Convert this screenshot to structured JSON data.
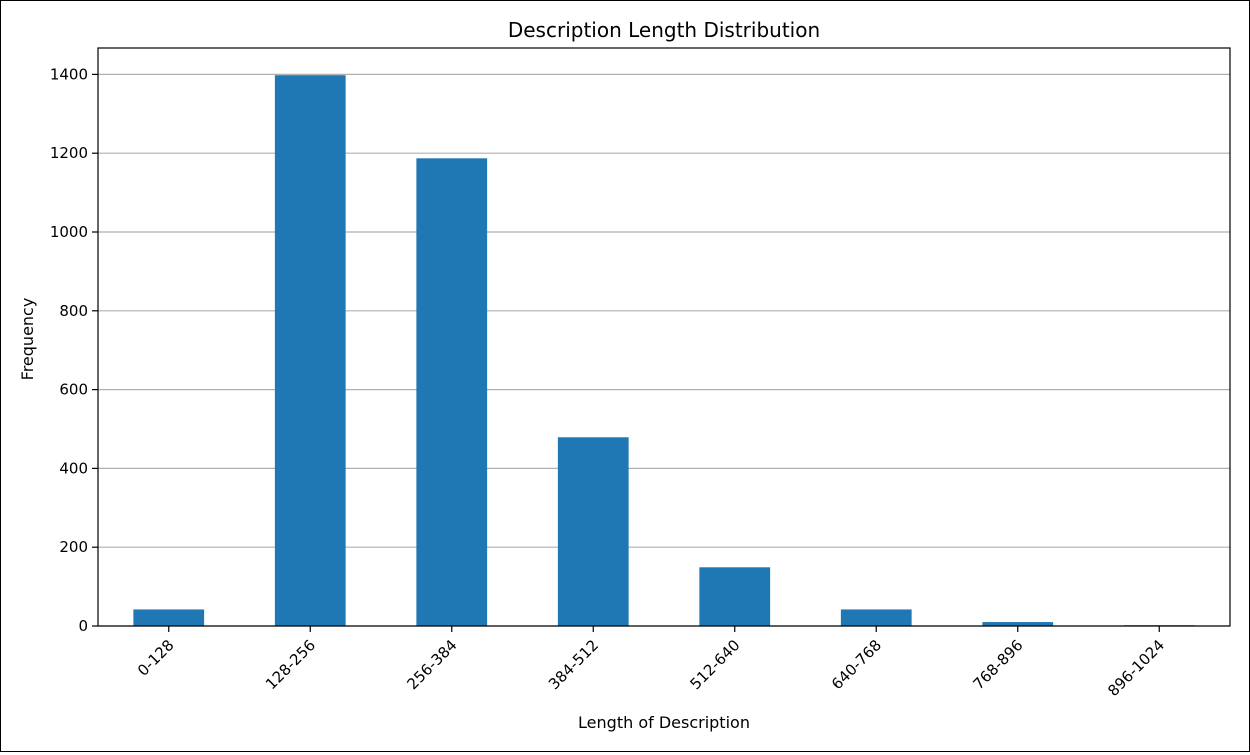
{
  "chart_data": {
    "type": "bar",
    "title": "Description Length Distribution",
    "xlabel": "Length of Description",
    "ylabel": "Frequency",
    "categories": [
      "0-128",
      "128-256",
      "256-384",
      "384-512",
      "512-640",
      "640-768",
      "768-896",
      "896-1024"
    ],
    "values": [
      42,
      1398,
      1187,
      479,
      149,
      42,
      10,
      2
    ],
    "ylim": [
      0,
      1467
    ],
    "yticks": [
      "0",
      "200",
      "400",
      "600",
      "800",
      "1000",
      "1200",
      "1400"
    ],
    "grid": "y-axis",
    "bar_color": "#1f77b4",
    "x_tick_rotation": "45 degrees"
  }
}
